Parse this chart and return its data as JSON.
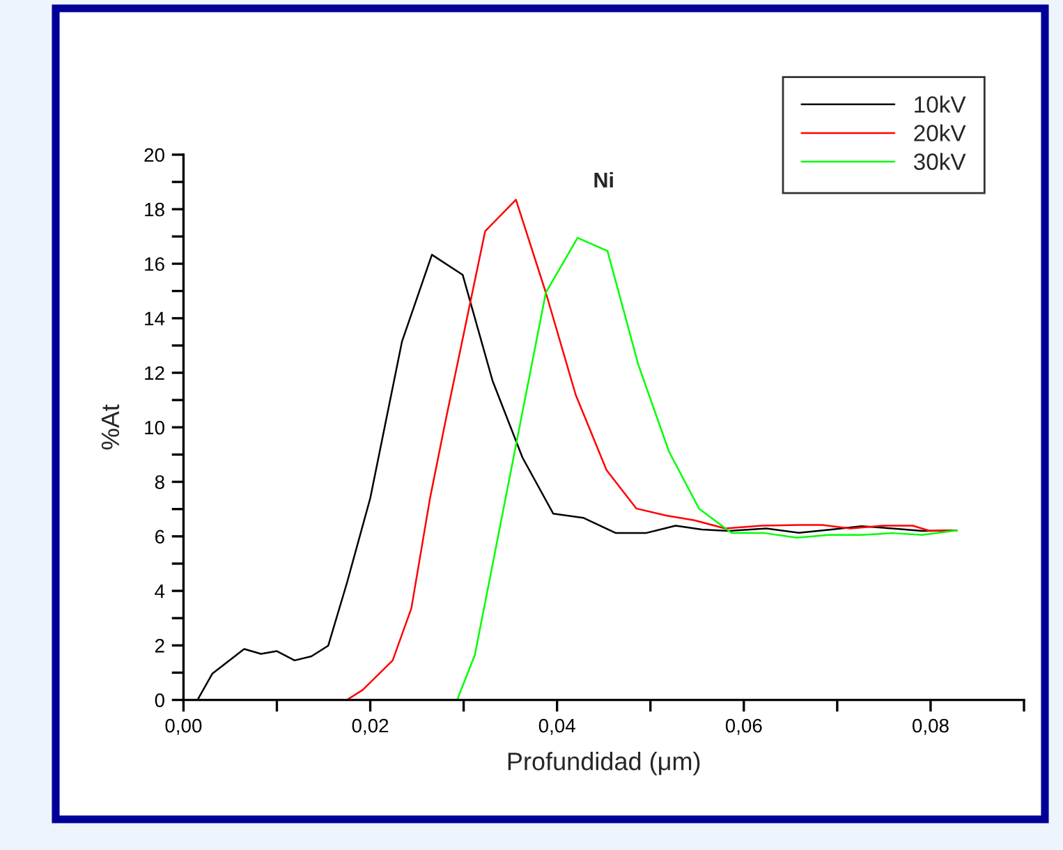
{
  "chart_data": {
    "type": "line",
    "title": "Ni",
    "xlabel": "Profundidad (μm)",
    "ylabel": "%At",
    "xlim": [
      0,
      0.09
    ],
    "ylim": [
      0,
      20
    ],
    "xticks": [
      {
        "value": 0,
        "label": "0,00"
      },
      {
        "value": 0.01,
        "label": null
      },
      {
        "value": 0.02,
        "label": "0,02"
      },
      {
        "value": 0.03,
        "label": null
      },
      {
        "value": 0.04,
        "label": "0,04"
      },
      {
        "value": 0.05,
        "label": null
      },
      {
        "value": 0.06,
        "label": "0,06"
      },
      {
        "value": 0.07,
        "label": null
      },
      {
        "value": 0.08,
        "label": "0,08"
      },
      {
        "value": 0.09,
        "label": null
      }
    ],
    "yticks": [
      0,
      {
        "value": 1,
        "label": null
      },
      2,
      {
        "value": 3,
        "label": null
      },
      4,
      {
        "value": 5,
        "label": null
      },
      6,
      {
        "value": 7,
        "label": null
      },
      8,
      {
        "value": 9,
        "label": null
      },
      10,
      {
        "value": 11,
        "label": null
      },
      12,
      {
        "value": 13,
        "label": null
      },
      14,
      {
        "value": 15,
        "label": null
      },
      16,
      {
        "value": 17,
        "label": null
      },
      18,
      {
        "value": 19,
        "label": null
      },
      20
    ],
    "grid": false,
    "legend": "top right",
    "marker": "none",
    "line_style": "solid",
    "series": [
      {
        "name": "10kV",
        "color": "#000000",
        "x": [
          0.0015,
          0.0031,
          0.0065,
          0.0083,
          0.01,
          0.0119,
          0.0137,
          0.0155,
          0.0175,
          0.02,
          0.0234,
          0.0266,
          0.0299,
          0.0331,
          0.0363,
          0.0396,
          0.0428,
          0.0463,
          0.0495,
          0.0527,
          0.0555,
          0.0584,
          0.0624,
          0.0659,
          0.0694,
          0.0726,
          0.0759,
          0.0791,
          0.0828
        ],
        "values": [
          0,
          0.97,
          1.87,
          1.69,
          1.79,
          1.45,
          1.6,
          1.99,
          4.29,
          7.4,
          13.15,
          16.33,
          15.59,
          11.7,
          8.89,
          6.83,
          6.68,
          6.12,
          6.12,
          6.39,
          6.25,
          6.2,
          6.29,
          6.13,
          6.25,
          6.37,
          6.29,
          6.2,
          6.22
        ]
      },
      {
        "name": "20kV",
        "color": "#ff0000",
        "x": [
          0,
          0.0175,
          0.0192,
          0.0224,
          0.0244,
          0.0264,
          0.0281,
          0.0323,
          0.0356,
          0.0388,
          0.042,
          0.0453,
          0.0485,
          0.0517,
          0.0547,
          0.058,
          0.0619,
          0.0659,
          0.0684,
          0.0714,
          0.0749,
          0.0781,
          0.0799,
          0.0828
        ],
        "values": [
          0,
          0,
          0.37,
          1.45,
          3.36,
          7.4,
          10.3,
          17.19,
          18.35,
          14.94,
          11.19,
          8.43,
          7.02,
          6.76,
          6.59,
          6.29,
          6.39,
          6.42,
          6.42,
          6.29,
          6.39,
          6.39,
          6.2,
          6.22
        ]
      },
      {
        "name": "30kV",
        "color": "#00ff00",
        "x": [
          0,
          0.0293,
          0.0312,
          0.0388,
          0.0422,
          0.0454,
          0.0487,
          0.052,
          0.0552,
          0.0587,
          0.0622,
          0.0657,
          0.0691,
          0.0726,
          0.0759,
          0.0791,
          0.0828
        ],
        "values": [
          0,
          0,
          1.65,
          14.94,
          16.95,
          16.47,
          12.3,
          9.1,
          7.02,
          6.12,
          6.12,
          5.95,
          6.05,
          6.05,
          6.12,
          6.05,
          6.22
        ]
      }
    ]
  }
}
